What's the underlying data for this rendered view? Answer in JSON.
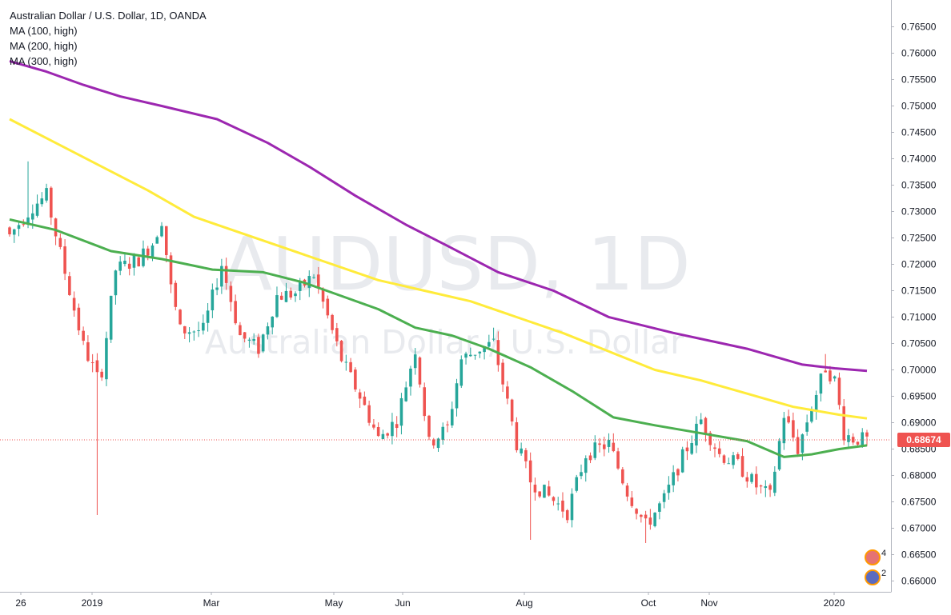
{
  "header": {
    "title": "Australian Dollar / U.S. Dollar, 1D, OANDA",
    "indicators": [
      "MA (100, high)",
      "MA (200, high)",
      "MA (300, high)"
    ]
  },
  "watermark": {
    "symbol": "AUDUSD, 1D",
    "name": "Australian Dollar / U.S. Dollar"
  },
  "colors": {
    "up": "#26a69a",
    "down": "#ef5350",
    "ma100": "#4caf50",
    "ma200": "#ffeb3b",
    "ma300": "#9c27b0",
    "price_label_bg": "#ef5350"
  },
  "last_price": "0.68674",
  "badges": [
    "4",
    "2"
  ],
  "chart_data": {
    "type": "candlestick",
    "y_ticks": [
      "0.76500",
      "0.76000",
      "0.75500",
      "0.75000",
      "0.74500",
      "0.74000",
      "0.73500",
      "0.73000",
      "0.72500",
      "0.72000",
      "0.71500",
      "0.71000",
      "0.70500",
      "0.70000",
      "0.69500",
      "0.69000",
      "0.68500",
      "0.68000",
      "0.67500",
      "0.67000",
      "0.66500",
      "0.66000"
    ],
    "x_ticks": [
      "26",
      "2019",
      "Mar",
      "May",
      "Jun",
      "Aug",
      "Oct",
      "Nov",
      "2020"
    ],
    "ylim": [
      0.659,
      0.767
    ],
    "series": [
      {
        "name": "MA (300, high)",
        "key": "ma300",
        "points": [
          [
            0,
            0.7585
          ],
          [
            8,
            0.7565
          ],
          [
            16,
            0.754
          ],
          [
            24,
            0.7518
          ],
          [
            33,
            0.75
          ],
          [
            45,
            0.7475
          ],
          [
            56,
            0.743
          ],
          [
            65,
            0.7385
          ],
          [
            75,
            0.733
          ],
          [
            86,
            0.7275
          ],
          [
            95,
            0.7235
          ],
          [
            106,
            0.7185
          ],
          [
            118,
            0.715
          ],
          [
            130,
            0.71
          ],
          [
            144,
            0.707
          ],
          [
            160,
            0.704
          ],
          [
            172,
            0.701
          ],
          [
            179,
            0.7003
          ],
          [
            186,
            0.6998
          ]
        ]
      },
      {
        "name": "MA (200, high)",
        "key": "ma200",
        "points": [
          [
            0,
            0.7475
          ],
          [
            10,
            0.743
          ],
          [
            20,
            0.7385
          ],
          [
            30,
            0.734
          ],
          [
            40,
            0.729
          ],
          [
            50,
            0.726
          ],
          [
            60,
            0.723
          ],
          [
            70,
            0.72
          ],
          [
            80,
            0.717
          ],
          [
            90,
            0.715
          ],
          [
            100,
            0.713
          ],
          [
            110,
            0.71
          ],
          [
            120,
            0.707
          ],
          [
            130,
            0.7035
          ],
          [
            140,
            0.7
          ],
          [
            150,
            0.698
          ],
          [
            160,
            0.6955
          ],
          [
            170,
            0.693
          ],
          [
            180,
            0.6915
          ],
          [
            186,
            0.6908
          ]
        ]
      },
      {
        "name": "MA (100, high)",
        "key": "ma100",
        "points": [
          [
            0,
            0.7285
          ],
          [
            10,
            0.7265
          ],
          [
            22,
            0.7225
          ],
          [
            33,
            0.721
          ],
          [
            44,
            0.719
          ],
          [
            55,
            0.7185
          ],
          [
            64,
            0.7165
          ],
          [
            72,
            0.714
          ],
          [
            80,
            0.7115
          ],
          [
            88,
            0.708
          ],
          [
            96,
            0.7065
          ],
          [
            104,
            0.704
          ],
          [
            113,
            0.7005
          ],
          [
            122,
            0.696
          ],
          [
            131,
            0.691
          ],
          [
            140,
            0.6895
          ],
          [
            150,
            0.688
          ],
          [
            160,
            0.6865
          ],
          [
            168,
            0.6835
          ],
          [
            174,
            0.684
          ],
          [
            180,
            0.685
          ],
          [
            186,
            0.6857
          ]
        ]
      }
    ],
    "close_path": [
      [
        0,
        0.7255
      ],
      [
        5,
        0.731
      ],
      [
        8,
        0.733
      ],
      [
        12,
        0.7185
      ],
      [
        16,
        0.7045
      ],
      [
        19,
        0.6985
      ],
      [
        20,
        0.7
      ],
      [
        23,
        0.719
      ],
      [
        28,
        0.721
      ],
      [
        31,
        0.724
      ],
      [
        33,
        0.7285
      ],
      [
        35,
        0.7155
      ],
      [
        37,
        0.7075
      ],
      [
        42,
        0.7075
      ],
      [
        46,
        0.72
      ],
      [
        50,
        0.7065
      ],
      [
        54,
        0.704
      ],
      [
        58,
        0.714
      ],
      [
        62,
        0.7145
      ],
      [
        66,
        0.718
      ],
      [
        69,
        0.71
      ],
      [
        72,
        0.702
      ],
      [
        76,
        0.695
      ],
      [
        80,
        0.687
      ],
      [
        84,
        0.6905
      ],
      [
        88,
        0.704
      ],
      [
        91,
        0.686
      ],
      [
        95,
        0.689
      ],
      [
        98,
        0.702
      ],
      [
        102,
        0.704
      ],
      [
        105,
        0.705
      ],
      [
        107,
        0.6975
      ],
      [
        110,
        0.686
      ],
      [
        113,
        0.679
      ],
      [
        117,
        0.676
      ],
      [
        121,
        0.673
      ],
      [
        125,
        0.684
      ],
      [
        130,
        0.686
      ],
      [
        134,
        0.677
      ],
      [
        138,
        0.6705
      ],
      [
        142,
        0.6755
      ],
      [
        146,
        0.6835
      ],
      [
        150,
        0.6905
      ],
      [
        154,
        0.684
      ],
      [
        158,
        0.682
      ],
      [
        162,
        0.678
      ],
      [
        165,
        0.676
      ],
      [
        168,
        0.6915
      ],
      [
        171,
        0.685
      ],
      [
        174,
        0.693
      ],
      [
        177,
        0.7005
      ],
      [
        179,
        0.698
      ],
      [
        181,
        0.688
      ],
      [
        183,
        0.687
      ],
      [
        186,
        0.6867
      ]
    ],
    "wicks": [
      [
        19,
        0.6725
      ],
      [
        113,
        0.6678
      ],
      [
        138,
        0.6672
      ],
      [
        4,
        0.7395
      ],
      [
        177,
        0.703
      ],
      [
        105,
        0.708
      ]
    ]
  }
}
